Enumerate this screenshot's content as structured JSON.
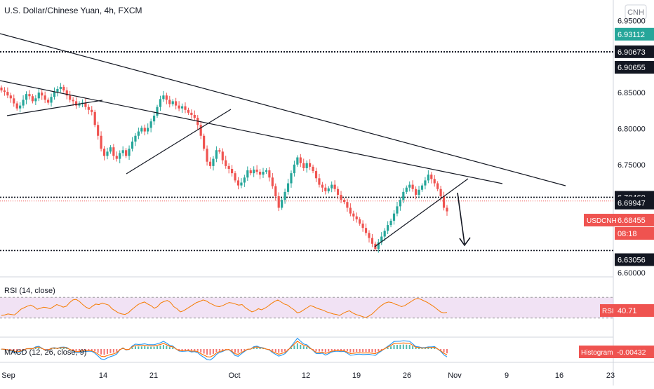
{
  "header": {
    "title": "U.S. Dollar/Chinese Yuan, 4h, FXCM"
  },
  "price_axis": {
    "currency": "CNH",
    "ticks": [
      "6.95000",
      "6.85000",
      "6.80000",
      "6.75000",
      "6.65000",
      "6.60000"
    ],
    "labels": {
      "top_green": "6.93112",
      "level_1": "6.90673",
      "level_2": "6.90655",
      "level_3": "6.70460",
      "level_4": "6.69947",
      "symbol": "USDCNH",
      "last_price": "6.68455",
      "countdown": "08:18",
      "level_5": "6.63056"
    }
  },
  "rsi": {
    "label": "RSI (14, close)",
    "tag": "RSI",
    "value": "40.71",
    "overbought": 70,
    "oversold": 30
  },
  "macd": {
    "label": "MACD (12, 26, close, 9)",
    "tag": "Histogram",
    "value": "-0.00432"
  },
  "time_axis": {
    "ticks": [
      "Sep",
      "14",
      "21",
      "Oct",
      "12",
      "19",
      "26",
      "Nov",
      "9",
      "16",
      "23"
    ]
  },
  "colors": {
    "up": "#26a69a",
    "down": "#ef5350",
    "rsi_line": "#f57c00",
    "rsi_band": "#e1bee7",
    "macd_line": "#2196f3",
    "signal_line": "#ff6d00",
    "green_label": "#26a69a",
    "red_label": "#ef5350",
    "black_label": "#131722"
  },
  "chart_data": {
    "type": "candlestick",
    "symbol": "USDCNH",
    "timeframe": "4h",
    "ylim": [
      6.595,
      6.965
    ],
    "horizontal_levels": [
      6.90673,
      6.90655,
      6.7046,
      6.69947,
      6.63056
    ],
    "last_price": 6.68455,
    "prices_close": [
      6.853,
      6.851,
      6.846,
      6.842,
      6.835,
      6.828,
      6.832,
      6.84,
      6.848,
      6.845,
      6.838,
      6.842,
      6.85,
      6.846,
      6.84,
      6.836,
      6.844,
      6.851,
      6.855,
      6.858,
      6.853,
      6.846,
      6.84,
      6.838,
      6.832,
      6.835,
      6.836,
      6.83,
      6.826,
      6.823,
      6.805,
      6.79,
      6.772,
      6.762,
      6.768,
      6.774,
      6.762,
      6.758,
      6.766,
      6.77,
      6.762,
      6.772,
      6.782,
      6.79,
      6.796,
      6.801,
      6.796,
      6.801,
      6.81,
      6.818,
      6.83,
      6.841,
      6.846,
      6.84,
      6.834,
      6.838,
      6.832,
      6.828,
      6.831,
      6.826,
      6.822,
      6.819,
      6.815,
      6.805,
      6.79,
      6.772,
      6.754,
      6.748,
      6.758,
      6.77,
      6.768,
      6.756,
      6.748,
      6.744,
      6.738,
      6.728,
      6.721,
      6.725,
      6.732,
      6.742,
      6.738,
      6.743,
      6.74,
      6.736,
      6.74,
      6.742,
      6.732,
      6.72,
      6.706,
      6.69,
      6.701,
      6.712,
      6.724,
      6.738,
      6.75,
      6.76,
      6.752,
      6.745,
      6.752,
      6.747,
      6.741,
      6.731,
      6.722,
      6.718,
      6.713,
      6.717,
      6.722,
      6.716,
      6.708,
      6.701,
      6.698,
      6.69,
      6.682,
      6.678,
      6.674,
      6.668,
      6.662,
      6.655,
      6.648,
      6.64,
      6.633,
      6.642,
      6.65,
      6.658,
      6.666,
      6.672,
      6.682,
      6.692,
      6.701,
      6.712,
      6.718,
      6.722,
      6.716,
      6.708,
      6.715,
      6.721,
      6.728,
      6.736,
      6.73,
      6.724,
      6.716,
      6.706,
      6.69,
      6.685
    ],
    "rsi_values": [
      35,
      36,
      38,
      37,
      36,
      41,
      47,
      50,
      53,
      55,
      52,
      47,
      49,
      51,
      50,
      48,
      52,
      56,
      54,
      51,
      53,
      60,
      65,
      66,
      62,
      56,
      51,
      48,
      53,
      57,
      56,
      59,
      57,
      55,
      48,
      44,
      40,
      38,
      37,
      40,
      46,
      51,
      56,
      59,
      61,
      57,
      54,
      49,
      52,
      59,
      62,
      64,
      60,
      52,
      48,
      42,
      44,
      48,
      52,
      56,
      60,
      62,
      65,
      63,
      59,
      56,
      53,
      52,
      54,
      57,
      60,
      59,
      57,
      55,
      56,
      50,
      46,
      42,
      44,
      48,
      46,
      49,
      53,
      58,
      62,
      65,
      61,
      57,
      55,
      50,
      46,
      40,
      42,
      46,
      50,
      54,
      52,
      49,
      47,
      45,
      42,
      40,
      38,
      37,
      35,
      39,
      42,
      44,
      40,
      37,
      35,
      33,
      31,
      34,
      38,
      44,
      50,
      55,
      59,
      61,
      60,
      57,
      55,
      52,
      54,
      58,
      62,
      66,
      68,
      66,
      63,
      60,
      56,
      52,
      47,
      42,
      40,
      41
    ]
  }
}
